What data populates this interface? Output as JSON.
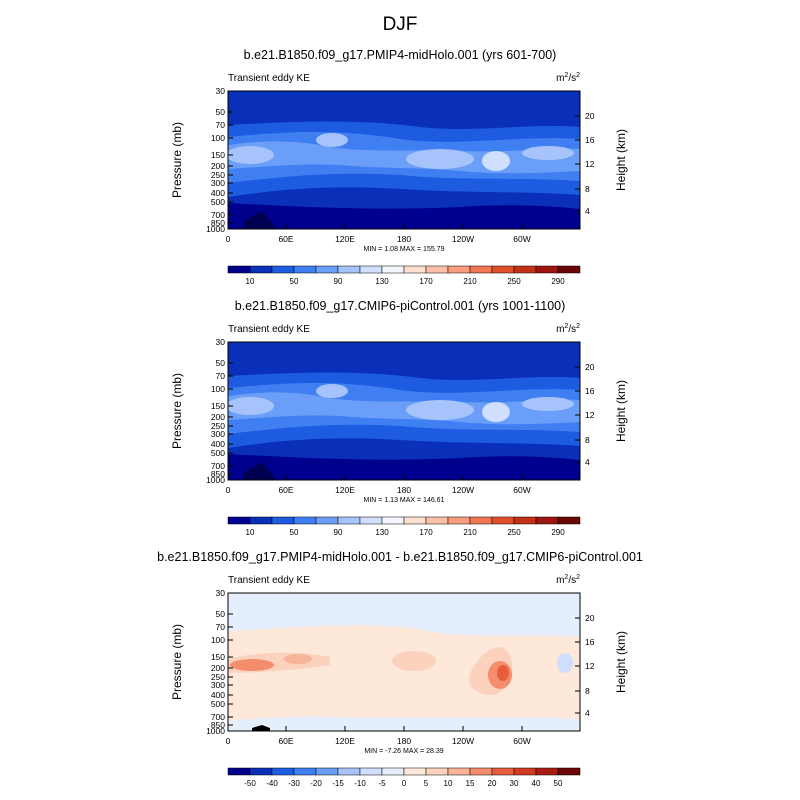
{
  "figure": {
    "title": "DJF",
    "left_axis_label": "Pressure (mb)",
    "right_axis_label": "Height (km)",
    "pressure_ticks": [
      "30",
      "50",
      "70",
      "100",
      "150",
      "200",
      "250",
      "300",
      "400",
      "500",
      "700",
      "850",
      "1000"
    ],
    "height_ticks": [
      "20",
      "16",
      "12",
      "8",
      "4"
    ],
    "lon_ticks": [
      "0",
      "60E",
      "120E",
      "180",
      "120W",
      "60W"
    ]
  },
  "chart_data": [
    {
      "type": "heatmap",
      "title": "b.e21.B1850.f09_g17.PMIP4-midHolo.001 (yrs 601-700)",
      "variable": "Transient eddy KE",
      "units": "m²/s²",
      "units_base": "m",
      "units_sup1": "2",
      "units_mid": "/s",
      "units_sup2": "2",
      "stats": "MIN =   1.08  MAX = 155.79",
      "min": 1.08,
      "max": 155.79,
      "colorbar_labels": [
        "10",
        "50",
        "90",
        "130",
        "170",
        "210",
        "250",
        "290"
      ],
      "colorbar_colors": [
        "#00008f",
        "#0a2fb8",
        "#1d5be0",
        "#3f7ff2",
        "#6a9ef8",
        "#a6c4fb",
        "#cfdffd",
        "#f4f6fd",
        "#fde0cf",
        "#fbc0a8",
        "#f79e7f",
        "#f17752",
        "#e04f2a",
        "#c23018",
        "#9d1610",
        "#6b0606"
      ]
    },
    {
      "type": "heatmap",
      "title": "b.e21.B1850.f09_g17.CMIP6-piControl.001 (yrs 1001-1100)",
      "variable": "Transient eddy KE",
      "units": "m²/s²",
      "units_base": "m",
      "units_sup1": "2",
      "units_mid": "/s",
      "units_sup2": "2",
      "stats": "MIN =   1.13  MAX = 146.61",
      "min": 1.13,
      "max": 146.61,
      "colorbar_labels": [
        "10",
        "50",
        "90",
        "130",
        "170",
        "210",
        "250",
        "290"
      ],
      "colorbar_colors": [
        "#00008f",
        "#0a2fb8",
        "#1d5be0",
        "#3f7ff2",
        "#6a9ef8",
        "#a6c4fb",
        "#cfdffd",
        "#f4f6fd",
        "#fde0cf",
        "#fbc0a8",
        "#f79e7f",
        "#f17752",
        "#e04f2a",
        "#c23018",
        "#9d1610",
        "#6b0606"
      ]
    },
    {
      "type": "heatmap",
      "title": "b.e21.B1850.f09_g17.PMIP4-midHolo.001 - b.e21.B1850.f09_g17.CMIP6-piControl.001",
      "variable": "Transient eddy KE",
      "units": "m²/s²",
      "units_base": "m",
      "units_sup1": "2",
      "units_mid": "/s",
      "units_sup2": "2",
      "stats": "MIN =  -7.26  MAX = 28.39",
      "min": -7.26,
      "max": 28.39,
      "colorbar_labels": [
        "-50",
        "-40",
        "-30",
        "-20",
        "-15",
        "-10",
        "-5",
        "0",
        "5",
        "10",
        "15",
        "20",
        "30",
        "40",
        "50"
      ],
      "colorbar_colors": [
        "#00008f",
        "#0a2fb8",
        "#1d5be0",
        "#3f7ff2",
        "#6a9ef8",
        "#a6c4fb",
        "#cfdffd",
        "#e4eefd",
        "#fde8da",
        "#fbd2bd",
        "#f8b399",
        "#f48d6c",
        "#e85e3c",
        "#cf3a20",
        "#a81c12",
        "#6b0606"
      ]
    }
  ]
}
